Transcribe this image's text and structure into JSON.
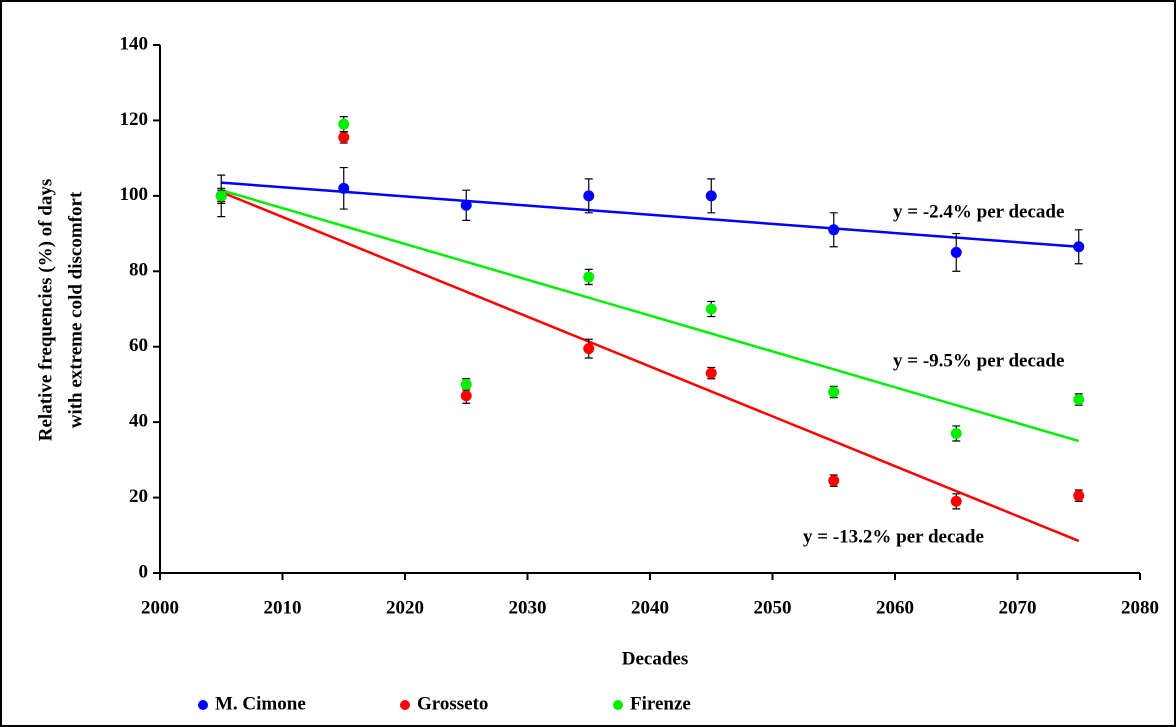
{
  "chart_data": {
    "type": "scatter",
    "x_label": "Decades",
    "y_label": [
      "Relative frequencies (%) of days",
      "with extreme cold discomfort"
    ],
    "x": [
      2005,
      2015,
      2025,
      2035,
      2045,
      2055,
      2065,
      2075
    ],
    "series": [
      {
        "name": "M. Cimone",
        "color": "#0000ff",
        "values": [
          100,
          102,
          97.5,
          100,
          100,
          91,
          85,
          86.5
        ],
        "errors": [
          5.5,
          5.5,
          4,
          4.5,
          4.5,
          4.5,
          5,
          4.5
        ],
        "trend": {
          "x": [
            2005,
            2075
          ],
          "values": [
            103.5,
            86.5
          ]
        }
      },
      {
        "name": "Grosseto",
        "color": "#ff0000",
        "values": [
          100,
          115.5,
          47,
          59.5,
          53,
          24.5,
          19,
          20.5
        ],
        "errors": [
          1.5,
          1.5,
          2,
          2.5,
          1.5,
          1.5,
          2,
          1.5
        ],
        "trend": {
          "x": [
            2005,
            2075
          ],
          "values": [
            101,
            8.5
          ]
        }
      },
      {
        "name": "Firenze",
        "color": "#00ee00",
        "values": [
          100,
          119,
          50,
          78.5,
          70,
          48,
          37,
          46
        ],
        "errors": [
          2,
          2,
          1.5,
          2,
          2,
          1.5,
          2,
          1.5
        ],
        "trend": {
          "x": [
            2005,
            2075
          ],
          "values": [
            101.5,
            35
          ]
        }
      }
    ],
    "annotations": [
      "y = -2.4% per decade",
      "y = -9.5% per decade",
      "y = -13.2% per decade"
    ],
    "xlim": [
      2000,
      2080
    ],
    "xticks": [
      2000,
      2010,
      2020,
      2030,
      2040,
      2050,
      2060,
      2070,
      2080
    ],
    "ylim": [
      0,
      140
    ],
    "yticks": [
      0,
      20,
      40,
      60,
      80,
      100,
      120,
      140
    ],
    "grid": false,
    "legend": "bottom"
  }
}
